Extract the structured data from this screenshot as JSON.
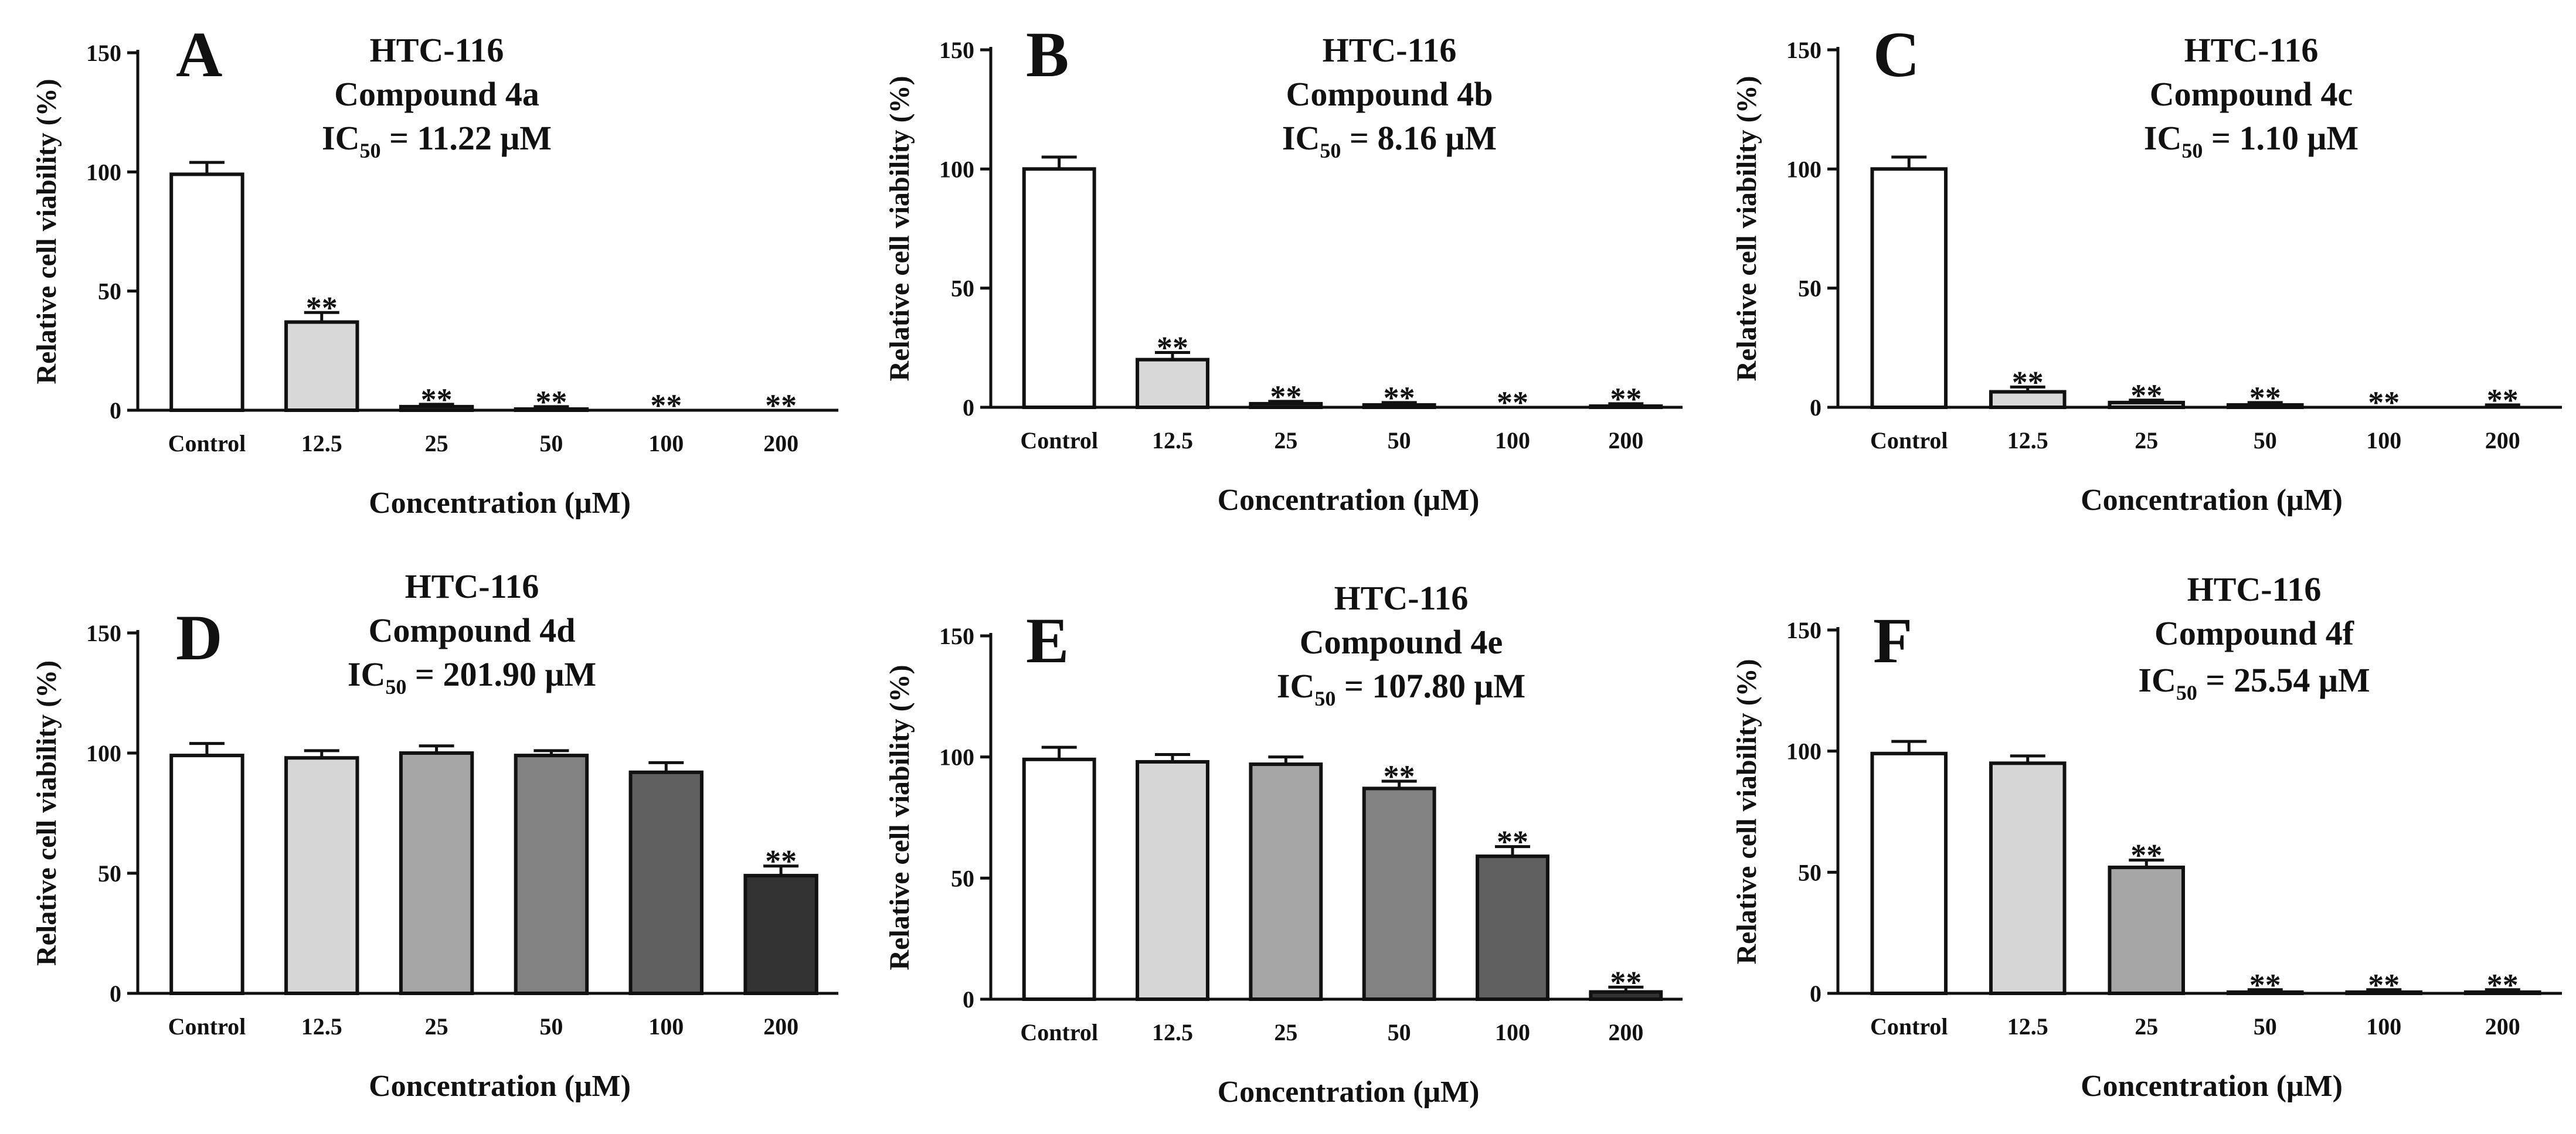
{
  "chart_data": [
    {
      "type": "bar",
      "panel": "A",
      "title_lines": [
        "HTC-116",
        "Compound 4a"
      ],
      "ic50": {
        "prefix": "IC",
        "subscript": "50",
        "text": "= 11.22 μM"
      },
      "categories": [
        "Control",
        "12.5",
        "25",
        "50",
        "100",
        "200"
      ],
      "values": [
        99,
        37,
        1.5,
        0.5,
        0,
        0
      ],
      "errors": [
        5,
        4,
        1,
        1,
        0,
        0
      ],
      "significance": [
        "",
        "**",
        "**",
        "**",
        "**",
        "**"
      ],
      "bar_colors": [
        "#ffffff",
        "#d8d8d8",
        "#d8d8d8",
        "#d8d8d8",
        "#d8d8d8",
        "#d8d8d8"
      ],
      "xlabel": "Concentration (μM)",
      "ylabel": "Relative cell viability (%)",
      "ylim": [
        0,
        150
      ],
      "yticks": [
        0,
        50,
        100,
        150
      ]
    },
    {
      "type": "bar",
      "panel": "B",
      "title_lines": [
        "HTC-116",
        "Compound 4b"
      ],
      "ic50": {
        "prefix": "IC",
        "subscript": "50",
        "text": "= 8.16 μM"
      },
      "categories": [
        "Control",
        "12.5",
        "25",
        "50",
        "100",
        "200"
      ],
      "values": [
        100,
        20,
        1.5,
        1,
        0,
        0.5
      ],
      "errors": [
        5,
        3,
        1,
        1,
        0,
        1
      ],
      "significance": [
        "",
        "**",
        "**",
        "**",
        "**",
        "**"
      ],
      "bar_colors": [
        "#ffffff",
        "#d8d8d8",
        "#d8d8d8",
        "#d8d8d8",
        "#d8d8d8",
        "#d8d8d8"
      ],
      "xlabel": "Concentration (μM)",
      "ylabel": "Relative cell viability (%)",
      "ylim": [
        0,
        150
      ],
      "yticks": [
        0,
        50,
        100,
        150
      ]
    },
    {
      "type": "bar",
      "panel": "C",
      "title_lines": [
        "HTC-116",
        "Compound 4c"
      ],
      "ic50": {
        "prefix": "IC",
        "subscript": "50",
        "text": "= 1.10 μM"
      },
      "categories": [
        "Control",
        "12.5",
        "25",
        "50",
        "100",
        "200"
      ],
      "values": [
        100,
        6.5,
        2,
        1,
        0,
        0
      ],
      "errors": [
        5,
        2,
        1,
        1,
        0,
        1
      ],
      "significance": [
        "",
        "**",
        "**",
        "**",
        "**",
        "**"
      ],
      "bar_colors": [
        "#ffffff",
        "#d8d8d8",
        "#d8d8d8",
        "#d8d8d8",
        "#d8d8d8",
        "#d8d8d8"
      ],
      "xlabel": "Concentration (μM)",
      "ylabel": "Relative cell viability (%)",
      "ylim": [
        0,
        150
      ],
      "yticks": [
        0,
        50,
        100,
        150
      ]
    },
    {
      "type": "bar",
      "panel": "D",
      "title_lines": [
        "HTC-116",
        "Compound 4d"
      ],
      "ic50": {
        "prefix": "IC",
        "subscript": "50",
        "text": "= 201.90 μM"
      },
      "categories": [
        "Control",
        "12.5",
        "25",
        "50",
        "100",
        "200"
      ],
      "values": [
        99,
        98,
        100,
        99,
        92,
        49
      ],
      "errors": [
        5,
        3,
        3,
        2,
        4,
        4
      ],
      "significance": [
        "",
        "",
        "",
        "",
        "",
        "**"
      ],
      "bar_colors": [
        "#ffffff",
        "#d6d6d6",
        "#a6a6a6",
        "#828282",
        "#606060",
        "#333333"
      ],
      "xlabel": "Concentration (μM)",
      "ylabel": "Relative cell viability (%)",
      "ylim": [
        0,
        150
      ],
      "yticks": [
        0,
        50,
        100,
        150
      ]
    },
    {
      "type": "bar",
      "panel": "E",
      "title_lines": [
        "HTC-116",
        "Compound 4e"
      ],
      "ic50": {
        "prefix": "IC",
        "subscript": "50",
        "text": "= 107.80 μM"
      },
      "categories": [
        "Control",
        "12.5",
        "25",
        "50",
        "100",
        "200"
      ],
      "values": [
        99,
        98,
        97,
        87,
        59,
        3
      ],
      "errors": [
        5,
        3,
        3,
        3,
        4,
        2
      ],
      "significance": [
        "",
        "",
        "",
        "**",
        "**",
        "**"
      ],
      "bar_colors": [
        "#ffffff",
        "#d6d6d6",
        "#a6a6a6",
        "#828282",
        "#606060",
        "#333333"
      ],
      "xlabel": "Concentration (μM)",
      "ylabel": "Relative cell viability (%)",
      "ylim": [
        0,
        150
      ],
      "yticks": [
        0,
        50,
        100,
        150
      ]
    },
    {
      "type": "bar",
      "panel": "F",
      "title_lines": [
        "HTC-116",
        "Compound 4f"
      ],
      "ic50": {
        "prefix": "IC",
        "subscript": "50",
        "text": "= 25.54 μM"
      },
      "categories": [
        "Control",
        "12.5",
        "25",
        "50",
        "100",
        "200"
      ],
      "values": [
        99,
        95,
        52,
        0.5,
        0.5,
        0.5
      ],
      "errors": [
        5,
        3,
        3,
        1,
        1,
        1
      ],
      "significance": [
        "",
        "",
        "**",
        "**",
        "**",
        "**"
      ],
      "bar_colors": [
        "#ffffff",
        "#d6d6d6",
        "#a6a6a6",
        "#828282",
        "#606060",
        "#333333"
      ],
      "xlabel": "Concentration (μM)",
      "ylabel": "Relative cell viability (%)",
      "ylim": [
        0,
        150
      ],
      "yticks": [
        0,
        50,
        100,
        150
      ]
    }
  ]
}
